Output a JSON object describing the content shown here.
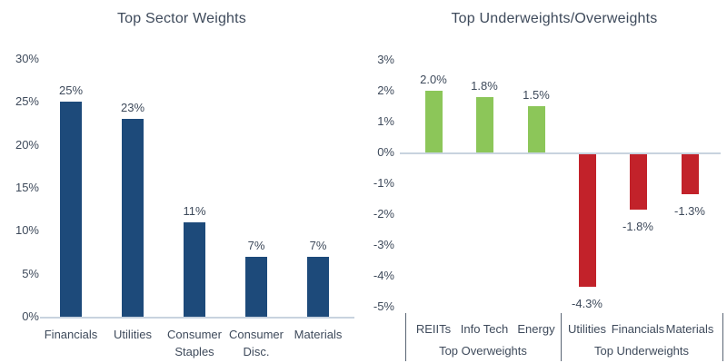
{
  "page": {
    "background": "#FFFFFF"
  },
  "colors": {
    "text": "#3E4A5B",
    "bar_blue": "#1D4A7A",
    "bar_green": "#8CC659",
    "bar_red": "#C2222A",
    "axis_line": "#C8D3DF",
    "divider_line": "#5A6574"
  },
  "chart_data": [
    {
      "type": "bar",
      "title": "Top Sector Weights",
      "categories": [
        "Financials",
        "Utilities",
        "Consumer Staples",
        "Consumer Disc.",
        "Materials"
      ],
      "values": [
        25,
        23,
        11,
        7,
        7
      ],
      "value_labels": [
        "25%",
        "23%",
        "11%",
        "7%",
        "7%"
      ],
      "ytick_labels": [
        "30%",
        "25%",
        "20%",
        "15%",
        "10%",
        "5%",
        "0%"
      ],
      "ytick_values": [
        30,
        25,
        20,
        15,
        10,
        5,
        0
      ],
      "ylim": [
        0,
        30
      ],
      "xlabel": "",
      "ylabel": "",
      "grid": false,
      "legend": false,
      "bar_color_key": "bar_blue"
    },
    {
      "type": "bar",
      "title": "Top Underweights/Overweights",
      "categories": [
        "REIITs",
        "Info Tech",
        "Energy",
        "Utilities",
        "Financials",
        "Materials"
      ],
      "values": [
        2.0,
        1.8,
        1.5,
        -4.3,
        -1.8,
        -1.3
      ],
      "value_labels": [
        "2.0%",
        "1.8%",
        "1.5%",
        "-4.3%",
        "-1.8%",
        "-1.3%"
      ],
      "ytick_labels": [
        "3%",
        "2%",
        "1%",
        "0%",
        "-1%",
        "-2%",
        "-3%",
        "-4%",
        "-5%"
      ],
      "ytick_values": [
        3,
        2,
        1,
        0,
        -1,
        -2,
        -3,
        -4,
        -5
      ],
      "ylim": [
        -5,
        3
      ],
      "xlabel": "",
      "ylabel": "",
      "grid": false,
      "legend": false,
      "positive_color_key": "bar_green",
      "negative_color_key": "bar_red",
      "groups": [
        {
          "label": "Top Overweights",
          "categories": [
            "REIITs",
            "Info Tech",
            "Energy"
          ]
        },
        {
          "label": "Top Underweights",
          "categories": [
            "Utilities",
            "Financials",
            "Materials"
          ]
        }
      ]
    }
  ]
}
